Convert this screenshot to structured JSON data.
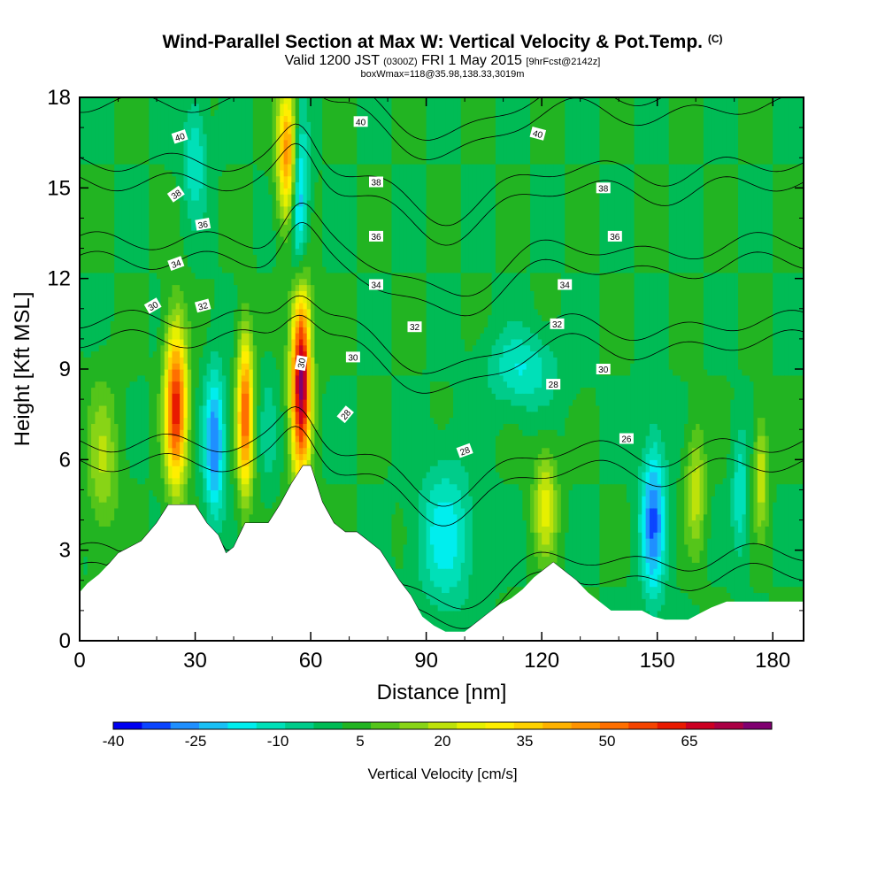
{
  "header": {
    "title_main": "Wind-Parallel Section at Max W: Vertical Velocity & Pot.Temp.",
    "title_mark": "(C)",
    "valid_prefix": "Valid 1200 JST",
    "valid_utc": "(0300Z)",
    "valid_date": "FRI 1 May 2015",
    "valid_fcst": "[9hrFcst@2142z]",
    "box_info": "boxWmax=118@35.98,138.33,3019m"
  },
  "chart_data": {
    "type": "heatmap",
    "xlabel": "Distance [nm]",
    "ylabel": "Height [Kft MSL]",
    "xlim": [
      0,
      188
    ],
    "ylim": [
      0,
      18
    ],
    "x_ticks": [
      0,
      30,
      60,
      90,
      120,
      150,
      180
    ],
    "y_ticks": [
      0,
      3,
      6,
      9,
      12,
      15,
      18
    ],
    "grid": false,
    "colorbar": {
      "title": "Vertical Velocity [cm/s]",
      "placement": "bottom",
      "min": -40,
      "max": 75,
      "step": 5,
      "labels": [
        "-40",
        "-25",
        "-10",
        "5",
        "20",
        "35",
        "50",
        "65"
      ],
      "label_values": [
        -40,
        -25,
        -10,
        5,
        20,
        35,
        50,
        65
      ],
      "colors": [
        "#0000f0",
        "#0b45ff",
        "#1f8fff",
        "#19c0f5",
        "#00eeee",
        "#00e0b8",
        "#00cc8a",
        "#00bb55",
        "#22b422",
        "#55c51a",
        "#88d416",
        "#bde20a",
        "#e6f000",
        "#ffee00",
        "#ffd200",
        "#ffb200",
        "#ff9300",
        "#ff6f00",
        "#f44400",
        "#e81a00",
        "#cc0022",
        "#aa0044",
        "#800070"
      ]
    },
    "velocity_cells": [
      {
        "x": 25,
        "z": 7.8,
        "w": 58,
        "rx": 2.8,
        "rz": 2.6
      },
      {
        "x": 35,
        "z": 6.5,
        "w": -30,
        "rx": 2.6,
        "rz": 2.4
      },
      {
        "x": 43,
        "z": 7.5,
        "w": 50,
        "rx": 2.0,
        "rz": 2.6
      },
      {
        "x": 49,
        "z": 7.0,
        "w": -8,
        "rx": 2.0,
        "rz": 2.0
      },
      {
        "x": 57.5,
        "z": 8.7,
        "w": 72,
        "rx": 2.5,
        "rz": 3.2
      },
      {
        "x": 54,
        "z": 16.2,
        "w": 45,
        "rx": 2.6,
        "rz": 2.2
      },
      {
        "x": 57,
        "z": 14.5,
        "w": -30,
        "rx": 2.2,
        "rz": 3.0
      },
      {
        "x": 30,
        "z": 16.0,
        "w": -15,
        "rx": 3.0,
        "rz": 2.0
      },
      {
        "x": 95,
        "z": 3.5,
        "w": -18,
        "rx": 7.0,
        "rz": 2.4
      },
      {
        "x": 115,
        "z": 9.0,
        "w": -15,
        "rx": 9.0,
        "rz": 1.3
      },
      {
        "x": 121,
        "z": 4.5,
        "w": 22,
        "rx": 3.0,
        "rz": 1.8
      },
      {
        "x": 149,
        "z": 4.0,
        "w": -30,
        "rx": 3.2,
        "rz": 2.6
      },
      {
        "x": 160,
        "z": 5.0,
        "w": 18,
        "rx": 2.5,
        "rz": 2.0
      },
      {
        "x": 171.5,
        "z": 4.8,
        "w": -15,
        "rx": 2.0,
        "rz": 2.0
      },
      {
        "x": 177,
        "z": 5.5,
        "w": 20,
        "rx": 1.8,
        "rz": 1.8
      },
      {
        "x": 6,
        "z": 6.0,
        "w": 15,
        "rx": 4.0,
        "rz": 2.5
      }
    ],
    "terrain": {
      "x": [
        0,
        2,
        5,
        8,
        10,
        13,
        16,
        18,
        20,
        23,
        27,
        30,
        33,
        36,
        38,
        40,
        43,
        46,
        49,
        52,
        55,
        58,
        60,
        63,
        66,
        69,
        72,
        75,
        78,
        80,
        83,
        86,
        89,
        92,
        95,
        98,
        100,
        103,
        106,
        109,
        112,
        115,
        118,
        120,
        123,
        126,
        129,
        132,
        135,
        138,
        140,
        143,
        146,
        149,
        152,
        155,
        158,
        161,
        164,
        168,
        172,
        176,
        180,
        184,
        188
      ],
      "z": [
        1.6,
        1.9,
        2.2,
        2.6,
        2.9,
        3.1,
        3.3,
        3.6,
        3.9,
        4.5,
        4.5,
        4.5,
        3.9,
        3.5,
        2.9,
        3.1,
        3.9,
        3.9,
        3.9,
        4.5,
        5.2,
        5.8,
        5.8,
        4.6,
        3.9,
        3.6,
        3.6,
        3.3,
        3.0,
        2.6,
        2.0,
        1.5,
        0.8,
        0.5,
        0.3,
        0.3,
        0.3,
        0.6,
        0.9,
        1.2,
        1.4,
        1.7,
        2.1,
        2.3,
        2.6,
        2.3,
        2.0,
        1.6,
        1.3,
        1.0,
        1.0,
        1.0,
        1.0,
        0.8,
        0.7,
        0.7,
        0.7,
        0.9,
        1.1,
        1.3,
        1.3,
        1.3,
        1.3,
        1.3,
        1.3
      ]
    },
    "theta_levels": [
      26,
      28,
      30,
      32,
      34,
      36,
      38,
      40
    ],
    "theta_contour_labels": [
      {
        "text": "40",
        "x": 26,
        "z": 16.7,
        "angle": -18
      },
      {
        "text": "40",
        "x": 73,
        "z": 17.2,
        "angle": 0
      },
      {
        "text": "40",
        "x": 119,
        "z": 16.8,
        "angle": 15
      },
      {
        "text": "38",
        "x": 25,
        "z": 14.8,
        "angle": -35
      },
      {
        "text": "38",
        "x": 77,
        "z": 15.2,
        "angle": 0
      },
      {
        "text": "38",
        "x": 136,
        "z": 15.0,
        "angle": 0
      },
      {
        "text": "36",
        "x": 32,
        "z": 13.8,
        "angle": -10
      },
      {
        "text": "36",
        "x": 77,
        "z": 13.4,
        "angle": 0
      },
      {
        "text": "36",
        "x": 139,
        "z": 13.4,
        "angle": 0
      },
      {
        "text": "34",
        "x": 25,
        "z": 12.5,
        "angle": -20
      },
      {
        "text": "34",
        "x": 77,
        "z": 11.8,
        "angle": 0
      },
      {
        "text": "34",
        "x": 126,
        "z": 11.8,
        "angle": 0
      },
      {
        "text": "32",
        "x": 32,
        "z": 11.1,
        "angle": -15
      },
      {
        "text": "32",
        "x": 87,
        "z": 10.4,
        "angle": 0
      },
      {
        "text": "32",
        "x": 124,
        "z": 10.5,
        "angle": 0
      },
      {
        "text": "30",
        "x": 19,
        "z": 11.1,
        "angle": -30
      },
      {
        "text": "30",
        "x": 71,
        "z": 9.4,
        "angle": 0
      },
      {
        "text": "30",
        "x": 136,
        "z": 9.0,
        "angle": 0
      },
      {
        "text": "30",
        "x": 57.5,
        "z": 9.2,
        "angle": -80
      },
      {
        "text": "28",
        "x": 69,
        "z": 7.5,
        "angle": -50
      },
      {
        "text": "28",
        "x": 100,
        "z": 6.3,
        "angle": -20
      },
      {
        "text": "28",
        "x": 123,
        "z": 8.5,
        "angle": 0
      },
      {
        "text": "26",
        "x": 142,
        "z": 6.7,
        "angle": 0
      }
    ]
  }
}
